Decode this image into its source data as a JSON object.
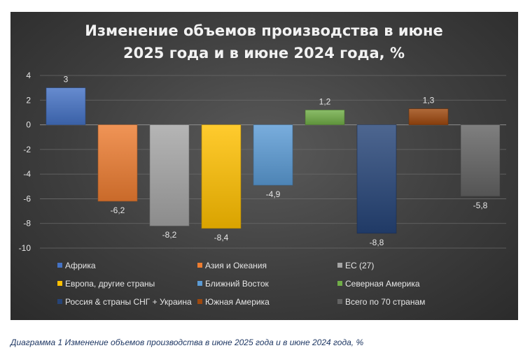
{
  "caption": "Диаграмма 1 Изменение объемов производства в июне 2025 года и в июне 2024 года, %",
  "chart_data": {
    "type": "bar",
    "title": [
      "Изменение объемов производства в июне",
      "2025 года и в июне 2024 года, %"
    ],
    "xlabel": "",
    "ylabel": "",
    "ylim": [
      -10,
      4
    ],
    "yticks": [
      4,
      2,
      0,
      -2,
      -4,
      -6,
      -8,
      -10
    ],
    "grid": true,
    "legend_position": "bottom",
    "series": [
      {
        "name": "Африка",
        "value": 3,
        "label": "3",
        "color": "#4472c4"
      },
      {
        "name": "Азия и Океания",
        "value": -6.2,
        "label": "-6,2",
        "color": "#ed7d31"
      },
      {
        "name": "ЕС (27)",
        "value": -8.2,
        "label": "-8,2",
        "color": "#a5a5a5"
      },
      {
        "name": "Европа, другие страны",
        "value": -8.4,
        "label": "-8,4",
        "color": "#ffc000"
      },
      {
        "name": "Ближний Восток",
        "value": -4.9,
        "label": "-4,9",
        "color": "#5b9bd5"
      },
      {
        "name": "Северная Америка",
        "value": 1.2,
        "label": "1,2",
        "color": "#70ad47"
      },
      {
        "name": "Россия & страны СНГ + Украина",
        "value": -8.8,
        "label": "-8,8",
        "color": "#264478"
      },
      {
        "name": "Южная Америка",
        "value": 1.3,
        "label": "1,3",
        "color": "#9e480e"
      },
      {
        "name": "Всего по 70 странам",
        "value": -5.8,
        "label": "-5,8",
        "color": "#636363"
      }
    ]
  }
}
